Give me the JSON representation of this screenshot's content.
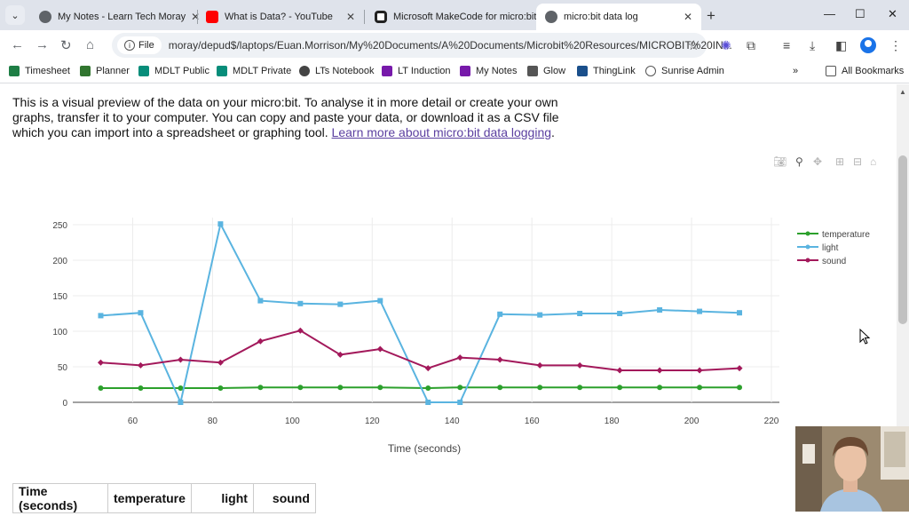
{
  "tabs": [
    {
      "title": "My Notes - Learn Tech Moray",
      "icon": "globe-icon",
      "active": false
    },
    {
      "title": "What is Data? - YouTube",
      "icon": "youtube-icon",
      "active": false
    },
    {
      "title": "Microsoft MakeCode for micro:bit",
      "icon": "makecode-icon",
      "active": false
    },
    {
      "title": "micro:bit data log",
      "icon": "globe-icon",
      "active": true
    }
  ],
  "omnibox": {
    "info_label": "File",
    "url": "moray/depud$/laptops/Euan.Morrison/My%20Documents/A%20Documents/Microbit%20Resources/MICROBIT%20IN..."
  },
  "bookmarks": [
    {
      "label": "Timesheet",
      "color": "#1e7e45"
    },
    {
      "label": "Planner",
      "color": "#31752f"
    },
    {
      "label": "MDLT Public",
      "color": "#078d7a"
    },
    {
      "label": "MDLT Private",
      "color": "#078d7a"
    },
    {
      "label": "LTs Notebook",
      "color": "#444444"
    },
    {
      "label": "LT Induction",
      "color": "#7719aa"
    },
    {
      "label": "My Notes",
      "color": "#7719aa"
    },
    {
      "label": "Glow",
      "color": "#555555"
    },
    {
      "label": "ThingLink",
      "color": "#1a4f8b"
    },
    {
      "label": "Sunrise Admin",
      "color": "#555555"
    }
  ],
  "all_bookmarks_label": "All Bookmarks",
  "intro": {
    "text": "This is a visual preview of the data on your micro:bit. To analyse it in more detail or create your own graphs, transfer it to your computer. You can copy and paste your data, or download it as a CSV file which you can import into a spreadsheet or graphing tool. ",
    "link": "Learn more about micro:bit data logging",
    "end": "."
  },
  "chart_data": {
    "type": "line",
    "xlabel": "Time (seconds)",
    "ylabel": "",
    "xlim": [
      45,
      222
    ],
    "ylim": [
      0,
      260
    ],
    "x_ticks": [
      60,
      80,
      100,
      120,
      140,
      160,
      180,
      200,
      220
    ],
    "y_ticks": [
      0,
      50,
      100,
      150,
      200,
      250
    ],
    "grid": true,
    "legend_placement": "top-right",
    "x": [
      52,
      62,
      72,
      82,
      92,
      102,
      112,
      122,
      134,
      142,
      152,
      162,
      172,
      182,
      192,
      202,
      212
    ],
    "series": [
      {
        "name": "temperature",
        "color": "#2ca02c",
        "values": [
          20,
          20,
          20,
          20,
          21,
          21,
          21,
          21,
          20,
          21,
          21,
          21,
          21,
          21,
          21,
          21,
          21
        ]
      },
      {
        "name": "light",
        "color": "#5ab4e0",
        "values": [
          122,
          126,
          0,
          251,
          143,
          139,
          138,
          143,
          0,
          0,
          124,
          123,
          125,
          125,
          130,
          128,
          126
        ]
      },
      {
        "name": "sound",
        "color": "#a3195b",
        "values": [
          56,
          52,
          60,
          56,
          86,
          101,
          67,
          75,
          48,
          63,
          60,
          52,
          52,
          45,
          45,
          45,
          48
        ]
      }
    ]
  },
  "table": {
    "headers": [
      "Time (seconds)",
      "temperature",
      "light",
      "sound"
    ]
  }
}
